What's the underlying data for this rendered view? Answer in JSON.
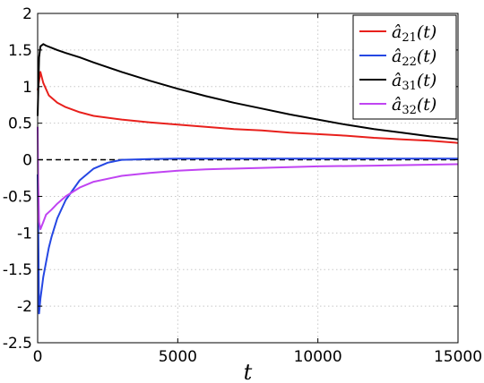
{
  "chart_data": {
    "type": "line",
    "title": "",
    "xlabel": "t",
    "ylabel": "",
    "xlim": [
      0,
      15000
    ],
    "ylim": [
      -2.5,
      2
    ],
    "xticks": [
      0,
      5000,
      10000,
      15000
    ],
    "xtick_labels": [
      "0",
      "5000",
      "10000",
      "15000"
    ],
    "yticks": [
      -2.5,
      -2,
      -1.5,
      -1,
      -0.5,
      0,
      0.5,
      1,
      1.5,
      2
    ],
    "ytick_labels": [
      "-2.5",
      "-2",
      "-1.5",
      "-1",
      "-0.5",
      "0",
      "0.5",
      "1",
      "1.5",
      "2"
    ],
    "grid": true,
    "legend_position": "top-right",
    "reference_line": {
      "y": 0,
      "style": "dashed",
      "color": "#000000"
    },
    "series": [
      {
        "name": "â21(t)",
        "legend_base": "â",
        "legend_sub": "21",
        "legend_tail": "(t)",
        "color": "#e8201c",
        "x": [
          0,
          100,
          200,
          400,
          700,
          1000,
          1500,
          2000,
          3000,
          4000,
          5000,
          6000,
          7000,
          8000,
          9000,
          10000,
          11000,
          12000,
          13000,
          14000,
          15000
        ],
        "y": [
          0.95,
          1.2,
          1.05,
          0.88,
          0.78,
          0.72,
          0.65,
          0.6,
          0.55,
          0.51,
          0.48,
          0.45,
          0.42,
          0.4,
          0.37,
          0.35,
          0.33,
          0.3,
          0.28,
          0.26,
          0.23
        ]
      },
      {
        "name": "â22(t)",
        "legend_base": "â",
        "legend_sub": "22",
        "legend_tail": "(t)",
        "color": "#2547e3",
        "x": [
          0,
          30,
          50,
          100,
          150,
          200,
          300,
          400,
          500,
          700,
          1000,
          1500,
          2000,
          2500,
          3000,
          4000,
          5000,
          7000,
          10000,
          15000
        ],
        "y": [
          -0.2,
          -1.2,
          -2.1,
          -1.9,
          -1.75,
          -1.6,
          -1.4,
          -1.2,
          -1.05,
          -0.8,
          -0.55,
          -0.28,
          -0.12,
          -0.04,
          0.0,
          0.01,
          0.015,
          0.015,
          0.015,
          0.015
        ]
      },
      {
        "name": "â31(t)",
        "legend_base": "â",
        "legend_sub": "31",
        "legend_tail": "(t)",
        "color": "#000000",
        "x": [
          0,
          50,
          100,
          200,
          300,
          500,
          700,
          1000,
          1500,
          2000,
          3000,
          4000,
          5000,
          6000,
          7000,
          8000,
          9000,
          10000,
          11000,
          12000,
          13000,
          14000,
          15000
        ],
        "y": [
          0.6,
          1.4,
          1.55,
          1.58,
          1.56,
          1.53,
          1.5,
          1.46,
          1.4,
          1.33,
          1.2,
          1.08,
          0.97,
          0.87,
          0.78,
          0.7,
          0.62,
          0.55,
          0.48,
          0.42,
          0.37,
          0.32,
          0.28
        ]
      },
      {
        "name": "â32(t)",
        "legend_base": "â",
        "legend_sub": "32",
        "legend_tail": "(t)",
        "color": "#c044f2",
        "x": [
          0,
          20,
          50,
          100,
          200,
          300,
          500,
          700,
          1000,
          1500,
          2000,
          3000,
          4000,
          5000,
          6000,
          8000,
          10000,
          12000,
          15000
        ],
        "y": [
          0.45,
          -0.3,
          -0.85,
          -0.95,
          -0.85,
          -0.75,
          -0.68,
          -0.6,
          -0.5,
          -0.38,
          -0.3,
          -0.22,
          -0.18,
          -0.15,
          -0.13,
          -0.11,
          -0.09,
          -0.08,
          -0.06
        ]
      }
    ]
  }
}
